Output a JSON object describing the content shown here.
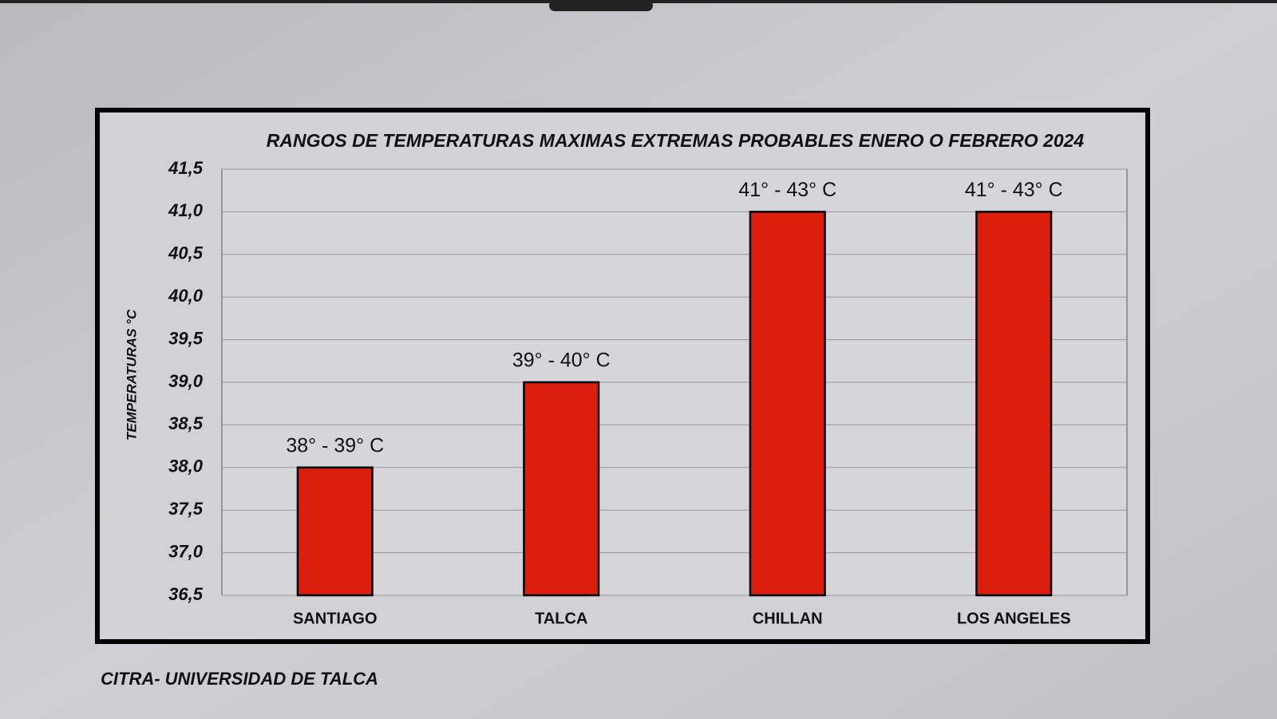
{
  "chart_data": {
    "type": "bar",
    "title": "RANGOS DE TEMPERATURAS MAXIMAS EXTREMAS PROBABLES ENERO O FEBRERO 2024",
    "y_label": "TEMPERATURAS °C",
    "source": "CITRA- UNIVERSIDAD DE TALCA",
    "categories": [
      "SANTIAGO",
      "TALCA",
      "CHILLAN",
      "LOS ANGELES"
    ],
    "values": [
      38.0,
      39.0,
      41.0,
      41.0
    ],
    "value_labels": [
      "38° - 39° C",
      "39° - 40° C",
      "41° - 43° C",
      "41° - 43° C"
    ],
    "color": "#dc1f0c",
    "ylim": [
      36.5,
      41.5
    ],
    "yticks": [
      {
        "value": 36.5,
        "label": "36,5"
      },
      {
        "value": 37.0,
        "label": "37,0"
      },
      {
        "value": 37.5,
        "label": "37,5"
      },
      {
        "value": 38.0,
        "label": "38,0"
      },
      {
        "value": 38.5,
        "label": "38,5"
      },
      {
        "value": 39.0,
        "label": "39,0"
      },
      {
        "value": 39.5,
        "label": "39,5"
      },
      {
        "value": 40.0,
        "label": "40,0"
      },
      {
        "value": 40.5,
        "label": "40,5"
      },
      {
        "value": 41.0,
        "label": "41,0"
      },
      {
        "value": 41.5,
        "label": "41,5"
      }
    ],
    "grid": true
  }
}
